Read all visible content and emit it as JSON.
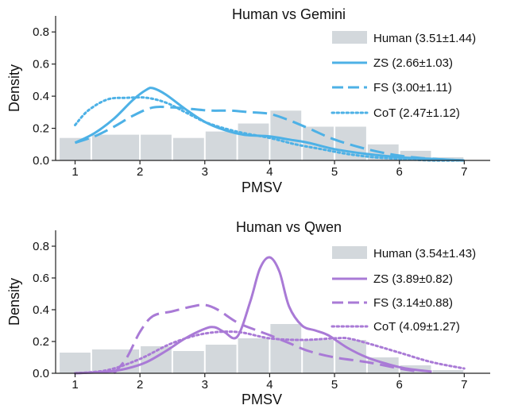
{
  "chart_data": [
    {
      "type": "bar+line",
      "title": "Human vs Gemini",
      "xlabel": "PMSV",
      "ylabel": "Density",
      "xlim": [
        0.7,
        7.4
      ],
      "ylim": [
        0,
        0.9
      ],
      "xticks": [
        "1",
        "2",
        "3",
        "4",
        "5",
        "6",
        "7"
      ],
      "yticks": [
        "0.0",
        "0.2",
        "0.4",
        "0.6",
        "0.8"
      ],
      "grid": false,
      "legend_position": "top-right",
      "histogram": {
        "name": "Human (3.51±1.44)",
        "color": "#d3d8dc",
        "bin_edges": [
          0.75,
          1.25,
          2.0,
          2.5,
          3.0,
          3.5,
          4.0,
          4.5,
          5.0,
          5.5,
          6.0,
          6.5,
          7.0
        ],
        "values": [
          0.14,
          0.16,
          0.16,
          0.14,
          0.18,
          0.23,
          0.31,
          0.21,
          0.21,
          0.1,
          0.06,
          0.02
        ]
      },
      "series": [
        {
          "name": "ZS (2.66±1.03)",
          "style": "solid",
          "color": "#4db1e6",
          "x": [
            1.0,
            1.3,
            1.6,
            1.9,
            2.1,
            2.2,
            2.4,
            2.7,
            3.0,
            3.3,
            3.6,
            4.0,
            4.3,
            4.6,
            5.0,
            5.5,
            6.0,
            6.5,
            7.0
          ],
          "y": [
            0.11,
            0.17,
            0.26,
            0.38,
            0.44,
            0.45,
            0.41,
            0.32,
            0.24,
            0.19,
            0.16,
            0.15,
            0.13,
            0.11,
            0.07,
            0.04,
            0.02,
            0.01,
            0.0
          ]
        },
        {
          "name": "FS (3.00±1.11)",
          "style": "dashed",
          "color": "#4db1e6",
          "x": [
            1.0,
            1.3,
            1.6,
            1.9,
            2.2,
            2.5,
            2.8,
            3.1,
            3.4,
            3.7,
            4.0,
            4.3,
            4.6,
            5.0,
            5.5,
            6.0,
            6.5,
            7.0
          ],
          "y": [
            0.11,
            0.15,
            0.21,
            0.28,
            0.33,
            0.33,
            0.32,
            0.31,
            0.31,
            0.3,
            0.29,
            0.25,
            0.2,
            0.13,
            0.07,
            0.03,
            0.01,
            0.0
          ]
        },
        {
          "name": "CoT (2.47±1.12)",
          "style": "dotted",
          "color": "#4db1e6",
          "x": [
            1.0,
            1.2,
            1.5,
            1.8,
            2.1,
            2.4,
            2.7,
            3.0,
            3.3,
            3.6,
            4.0,
            4.4,
            4.8,
            5.2,
            5.6,
            6.0,
            6.5,
            7.0
          ],
          "y": [
            0.22,
            0.31,
            0.38,
            0.39,
            0.39,
            0.36,
            0.3,
            0.24,
            0.2,
            0.17,
            0.14,
            0.1,
            0.07,
            0.04,
            0.02,
            0.01,
            0.0,
            0.0
          ]
        }
      ]
    },
    {
      "type": "bar+line",
      "title": "Human vs Qwen",
      "xlabel": "PMSV",
      "ylabel": "Density",
      "xlim": [
        0.7,
        7.4
      ],
      "ylim": [
        0,
        0.9
      ],
      "xticks": [
        "1",
        "2",
        "3",
        "4",
        "5",
        "6",
        "7"
      ],
      "yticks": [
        "0.0",
        "0.2",
        "0.4",
        "0.6",
        "0.8"
      ],
      "grid": false,
      "legend_position": "top-right",
      "histogram": {
        "name": "Human (3.54±1.43)",
        "color": "#d3d8dc",
        "bin_edges": [
          0.75,
          1.25,
          2.0,
          2.5,
          3.0,
          3.5,
          4.0,
          4.5,
          5.0,
          5.5,
          6.0,
          6.5,
          7.0
        ],
        "values": [
          0.13,
          0.15,
          0.17,
          0.14,
          0.18,
          0.22,
          0.31,
          0.21,
          0.21,
          0.1,
          0.05,
          0.02
        ]
      },
      "series": [
        {
          "name": "ZS (3.89±0.82)",
          "style": "solid",
          "color": "#a97ad6",
          "x": [
            1.0,
            1.5,
            1.8,
            2.1,
            2.4,
            2.7,
            3.0,
            3.15,
            3.3,
            3.5,
            3.7,
            3.85,
            4.0,
            4.15,
            4.3,
            4.5,
            4.7,
            4.9,
            5.2,
            5.5,
            5.8,
            6.1,
            6.5
          ],
          "y": [
            0.0,
            0.01,
            0.03,
            0.07,
            0.14,
            0.22,
            0.28,
            0.29,
            0.26,
            0.23,
            0.45,
            0.66,
            0.73,
            0.64,
            0.42,
            0.3,
            0.27,
            0.24,
            0.16,
            0.1,
            0.06,
            0.03,
            0.01
          ]
        },
        {
          "name": "FS (3.14±0.88)",
          "style": "dashed",
          "color": "#a97ad6",
          "x": [
            1.6,
            1.8,
            2.0,
            2.2,
            2.5,
            2.8,
            3.0,
            3.2,
            3.5,
            3.8,
            4.0,
            4.3,
            4.6,
            5.0,
            5.5,
            6.0,
            6.3
          ],
          "y": [
            0.0,
            0.1,
            0.26,
            0.36,
            0.39,
            0.42,
            0.43,
            0.4,
            0.32,
            0.27,
            0.24,
            0.19,
            0.14,
            0.1,
            0.07,
            0.03,
            0.01
          ]
        },
        {
          "name": "CoT (4.09±1.27)",
          "style": "dotted",
          "color": "#a97ad6",
          "x": [
            1.0,
            1.5,
            2.0,
            2.5,
            3.0,
            3.5,
            4.0,
            4.5,
            5.0,
            5.2,
            5.5,
            6.0,
            6.5,
            7.0
          ],
          "y": [
            0.0,
            0.02,
            0.09,
            0.19,
            0.25,
            0.26,
            0.22,
            0.21,
            0.22,
            0.22,
            0.19,
            0.13,
            0.07,
            0.03
          ]
        }
      ]
    }
  ]
}
